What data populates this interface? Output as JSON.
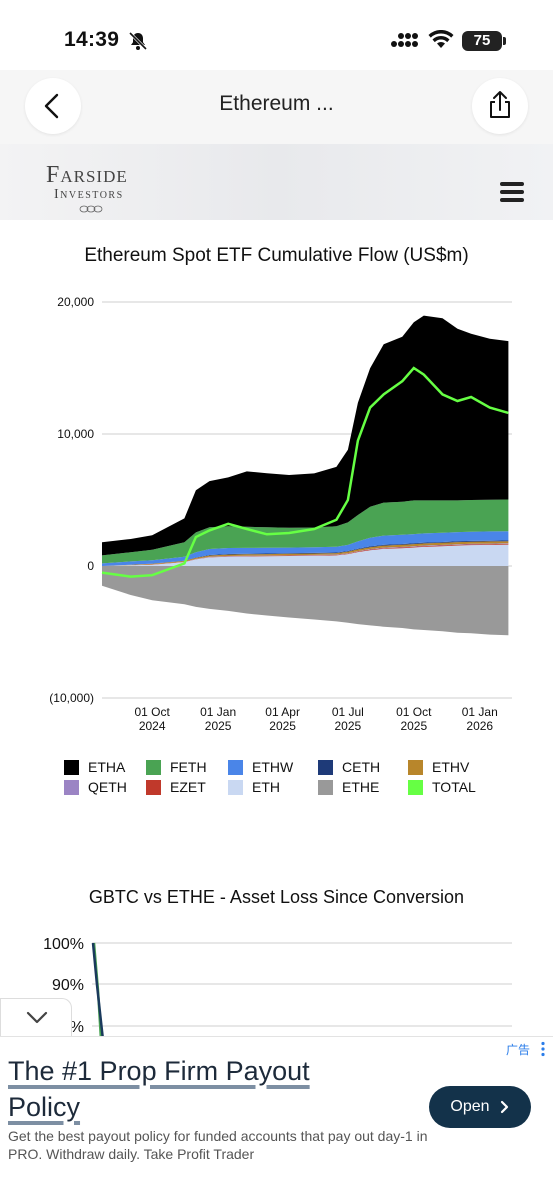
{
  "status_bar": {
    "time": "14:39",
    "battery": "75"
  },
  "nav": {
    "title": "Ethereum ..."
  },
  "site": {
    "logo_line1": "Farside",
    "logo_line2": "Investors"
  },
  "chart_data": [
    {
      "type": "area",
      "title": "Ethereum Spot ETF Cumulative Flow (US$m)",
      "y_ticks": [
        "20,000",
        "10,000",
        "0",
        "(10,000)"
      ],
      "ylim": [
        -10000,
        20000
      ],
      "x_ticks": [
        {
          "line1": "01 Oct",
          "line2": "2024"
        },
        {
          "line1": "01 Jan",
          "line2": "2025"
        },
        {
          "line1": "01 Apr",
          "line2": "2025"
        },
        {
          "line1": "01 Jul",
          "line2": "2025"
        },
        {
          "line1": "01 Oct",
          "line2": "2025"
        },
        {
          "line1": "01 Jan",
          "line2": "2026"
        }
      ],
      "x": [
        "2024-07-23",
        "2024-09-01",
        "2024-10-01",
        "2024-11-15",
        "2024-12-01",
        "2024-12-20",
        "2025-01-15",
        "2025-02-10",
        "2025-03-10",
        "2025-04-10",
        "2025-05-15",
        "2025-06-15",
        "2025-07-01",
        "2025-07-15",
        "2025-08-01",
        "2025-08-20",
        "2025-09-15",
        "2025-10-01",
        "2025-10-15",
        "2025-11-10",
        "2025-12-01",
        "2025-12-20",
        "2026-01-15",
        "2026-02-10"
      ],
      "series": [
        {
          "name": "ETHE",
          "color": "#999999",
          "values": [
            -1500,
            -2200,
            -2600,
            -2900,
            -3100,
            -3250,
            -3400,
            -3600,
            -3750,
            -3900,
            -4050,
            -4200,
            -4300,
            -4400,
            -4500,
            -4600,
            -4700,
            -4800,
            -4850,
            -4950,
            -5050,
            -5100,
            -5200,
            -5250
          ]
        },
        {
          "name": "ETH",
          "color": "#c9d8f2",
          "values": [
            0,
            50,
            100,
            300,
            500,
            650,
            700,
            720,
            740,
            760,
            780,
            800,
            900,
            1050,
            1200,
            1300,
            1350,
            1400,
            1450,
            1500,
            1550,
            1580,
            1600,
            1620
          ]
        },
        {
          "name": "EZET",
          "color": "#c0392b",
          "values": [
            0,
            5,
            10,
            15,
            20,
            25,
            30,
            30,
            30,
            35,
            35,
            40,
            40,
            45,
            50,
            55,
            60,
            60,
            60,
            60,
            60,
            60,
            60,
            60
          ]
        },
        {
          "name": "QETH",
          "color": "#9b84c4",
          "values": [
            0,
            5,
            10,
            10,
            15,
            20,
            25,
            25,
            25,
            25,
            25,
            30,
            30,
            30,
            35,
            40,
            40,
            40,
            40,
            40,
            40,
            40,
            40,
            40
          ]
        },
        {
          "name": "ETHV",
          "color": "#b8862b",
          "values": [
            0,
            30,
            50,
            60,
            80,
            100,
            110,
            110,
            110,
            110,
            110,
            110,
            120,
            130,
            140,
            150,
            160,
            160,
            160,
            160,
            160,
            160,
            160,
            160
          ]
        },
        {
          "name": "CETH",
          "color": "#1e3a78",
          "values": [
            0,
            5,
            10,
            20,
            30,
            40,
            45,
            45,
            45,
            45,
            45,
            45,
            50,
            55,
            60,
            60,
            60,
            60,
            60,
            60,
            60,
            60,
            60,
            60
          ]
        },
        {
          "name": "ETHW",
          "color": "#4a85e8",
          "values": [
            200,
            250,
            250,
            300,
            400,
            450,
            450,
            440,
            430,
            420,
            420,
            430,
            460,
            550,
            650,
            700,
            700,
            700,
            700,
            700,
            700,
            700,
            700,
            700
          ]
        },
        {
          "name": "FETH",
          "color": "#4aa353",
          "values": [
            600,
            700,
            800,
            1100,
            1500,
            1650,
            1650,
            1600,
            1550,
            1500,
            1500,
            1550,
            1700,
            2000,
            2350,
            2500,
            2500,
            2550,
            2500,
            2450,
            2400,
            2400,
            2400,
            2400
          ]
        },
        {
          "name": "ETHA",
          "color": "#000000",
          "values": [
            1000,
            1000,
            1100,
            1800,
            3200,
            3500,
            3700,
            4200,
            4100,
            4000,
            4100,
            4500,
            5500,
            8500,
            10500,
            12000,
            12500,
            13500,
            14000,
            13800,
            13000,
            12600,
            12200,
            12000
          ]
        },
        {
          "name": "TOTAL",
          "color": "#66ff44",
          "values": [
            -500,
            -800,
            -700,
            200,
            2200,
            2700,
            3200,
            2800,
            2400,
            2500,
            2800,
            3500,
            5000,
            9500,
            12000,
            13000,
            14000,
            15000,
            14500,
            13000,
            12500,
            12800,
            12000,
            11600
          ]
        }
      ]
    },
    {
      "type": "line",
      "title": "GBTC vs ETHE - Asset Loss Since Conversion",
      "y_ticks": [
        "100%",
        "90%",
        "%"
      ]
    }
  ],
  "legend": [
    {
      "label": "ETHA",
      "color": "#000000"
    },
    {
      "label": "FETH",
      "color": "#4aa353"
    },
    {
      "label": "ETHW",
      "color": "#4a85e8"
    },
    {
      "label": "CETH",
      "color": "#1e3a78"
    },
    {
      "label": "ETHV",
      "color": "#b8862b"
    },
    {
      "label": "QETH",
      "color": "#9b84c4"
    },
    {
      "label": "EZET",
      "color": "#c0392b"
    },
    {
      "label": "ETH",
      "color": "#c9d8f2"
    },
    {
      "label": "ETHE",
      "color": "#999999"
    },
    {
      "label": "TOTAL",
      "color": "#66ff44"
    }
  ],
  "ad": {
    "tag": "广告",
    "title": "The #1 Prop Firm Payout Policy",
    "description": "Get the best payout policy for funded accounts that pay out day-1 in PRO. Withdraw daily. Take Profit Trader",
    "button": "Open"
  }
}
